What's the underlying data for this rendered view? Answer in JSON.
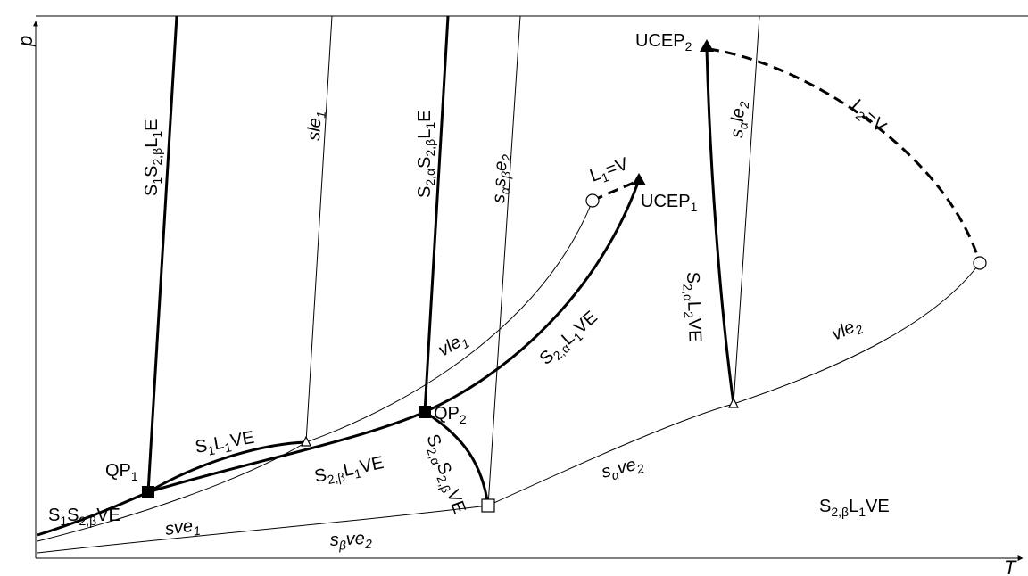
{
  "axes": {
    "x_label": "T",
    "y_label": "p"
  },
  "points": {
    "qp1": {
      "main": "QP",
      "sub": "1"
    },
    "qp2": {
      "main": "QP",
      "sub": "2"
    },
    "ucep1": {
      "main": "UCEP",
      "sub": "1"
    },
    "ucep2": {
      "main": "UCEP",
      "sub": "2"
    }
  },
  "labels": {
    "s1s2b_ve": [
      "S",
      "1",
      "S",
      "2,β",
      "VE"
    ],
    "s1l1ve": [
      "S",
      "1",
      "L",
      "1",
      "VE"
    ],
    "s2bl1ve_mid": [
      "S",
      "2,β",
      "L",
      "1",
      "VE"
    ],
    "s2al1ve": [
      "S",
      "2,α",
      "L",
      "1",
      "VE"
    ],
    "s2al2ve": [
      "S",
      "2,α",
      "L",
      "2",
      "VE"
    ],
    "s2as2bve": [
      "S",
      "2,α",
      "S",
      "2,β",
      "VE"
    ],
    "s2bl1ve_region": [
      "S",
      "2,β",
      "L",
      "1",
      "VE"
    ],
    "s1s2bl1e": [
      "S",
      "1",
      "S",
      "2,β",
      "L",
      "1",
      "E"
    ],
    "s2as2bl1e": [
      "S",
      "2,α",
      "S",
      "2,β",
      "L",
      "1",
      "E"
    ],
    "l1v": [
      "L",
      "1",
      "=V"
    ],
    "l2v": [
      "L",
      "2",
      "=V"
    ],
    "sle1": [
      "sle",
      "1"
    ],
    "sasbe2": [
      "s",
      "α",
      "s",
      "β",
      "e",
      "2"
    ],
    "sale2": [
      "s",
      "α",
      "le",
      "2"
    ],
    "vle1": [
      "vle",
      "1"
    ],
    "vle2": [
      "vle",
      "2"
    ],
    "sve1": [
      "sve",
      "1"
    ],
    "sbve2": [
      "s",
      "β",
      "ve",
      "2"
    ],
    "save2": [
      "s",
      "α",
      "ve",
      "2"
    ]
  }
}
